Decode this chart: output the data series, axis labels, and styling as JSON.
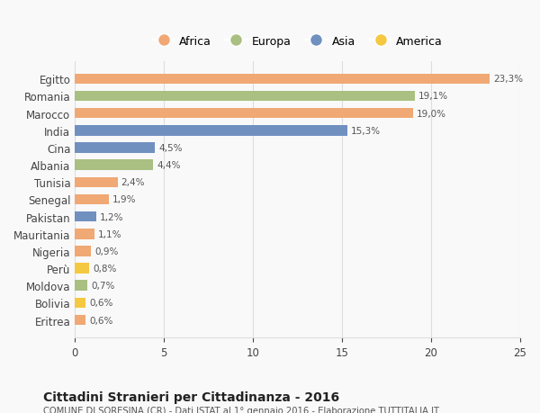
{
  "labels": [
    "Eritrea",
    "Bolivia",
    "Moldova",
    "Perù",
    "Nigeria",
    "Mauritania",
    "Pakistan",
    "Senegal",
    "Tunisia",
    "Albania",
    "Cina",
    "India",
    "Marocco",
    "Romania",
    "Egitto"
  ],
  "values": [
    0.6,
    0.6,
    0.7,
    0.8,
    0.9,
    1.1,
    1.2,
    1.9,
    2.4,
    4.4,
    4.5,
    15.3,
    19.0,
    19.1,
    23.3
  ],
  "label_texts": [
    "0,6%",
    "0,6%",
    "0,7%",
    "0,8%",
    "0,9%",
    "1,1%",
    "1,2%",
    "1,9%",
    "2,4%",
    "4,4%",
    "4,5%",
    "15,3%",
    "19,0%",
    "19,1%",
    "23,3%"
  ],
  "continents": [
    "Africa",
    "America",
    "Europa",
    "America",
    "Africa",
    "Africa",
    "Asia",
    "Africa",
    "Africa",
    "Europa",
    "Asia",
    "Asia",
    "Africa",
    "Europa",
    "Africa"
  ],
  "continent_colors": {
    "Africa": "#F0A875",
    "Europa": "#AABF82",
    "Asia": "#7090C0",
    "America": "#F5C842"
  },
  "legend_order": [
    "Africa",
    "Europa",
    "Asia",
    "America"
  ],
  "legend_colors": [
    "#F0A875",
    "#AABF82",
    "#7090C0",
    "#F5C842"
  ],
  "xlim": [
    0,
    25
  ],
  "xticks": [
    0,
    5,
    10,
    15,
    20,
    25
  ],
  "title": "Cittadini Stranieri per Cittadinanza - 2016",
  "subtitle": "COMUNE DI SORESINA (CR) - Dati ISTAT al 1° gennaio 2016 - Elaborazione TUTTITALIA.IT",
  "bg_color": "#f9f9f9",
  "bar_height": 0.6,
  "grid_color": "#dddddd"
}
